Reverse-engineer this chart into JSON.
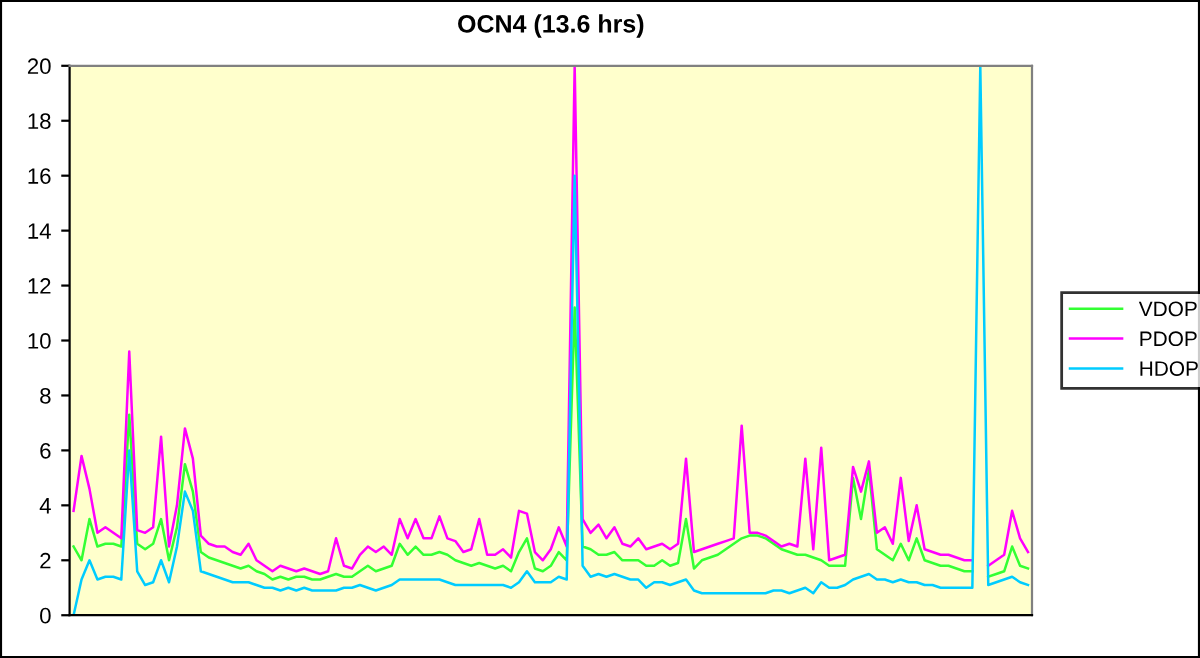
{
  "chart_data": {
    "type": "line",
    "title": "OCN4 (13.6 hrs)",
    "categories": [
      null,
      null,
      null,
      null,
      null,
      null,
      null,
      null,
      null,
      null,
      null,
      null,
      null,
      null,
      null,
      null,
      null,
      null,
      null,
      null,
      null,
      null,
      null,
      null,
      null,
      null,
      null,
      null,
      null,
      null,
      null,
      null,
      null,
      null,
      null,
      null,
      null,
      null,
      null,
      null,
      null,
      null,
      null,
      null,
      null,
      null,
      null,
      null,
      null,
      null,
      null,
      null,
      null,
      null,
      null,
      null,
      null,
      null,
      null,
      null,
      null,
      null,
      null,
      null,
      null,
      null,
      null,
      null,
      null,
      null,
      null,
      null,
      null,
      null,
      null,
      null,
      null,
      null,
      null,
      null,
      null,
      null,
      null,
      null,
      null,
      null,
      null,
      null,
      null,
      null,
      null,
      null,
      null,
      null,
      null,
      null,
      null,
      null,
      null,
      null,
      null,
      null,
      null,
      null,
      null,
      null,
      null,
      null,
      null,
      null,
      null,
      null,
      null,
      null,
      null,
      null,
      null,
      null,
      null,
      null,
      null
    ],
    "series": [
      {
        "name": "VDOP",
        "color": "#33ff33",
        "values": [
          2.5,
          2.0,
          3.5,
          2.5,
          2.6,
          2.6,
          2.5,
          7.3,
          2.6,
          2.4,
          2.6,
          3.5,
          2.0,
          3.2,
          5.5,
          4.5,
          2.3,
          2.1,
          2.0,
          1.9,
          1.8,
          1.7,
          1.8,
          1.6,
          1.5,
          1.3,
          1.4,
          1.3,
          1.4,
          1.4,
          1.3,
          1.3,
          1.4,
          1.5,
          1.4,
          1.4,
          1.6,
          1.8,
          1.6,
          1.7,
          1.8,
          2.6,
          2.2,
          2.5,
          2.2,
          2.2,
          2.3,
          2.2,
          2.0,
          1.9,
          1.8,
          1.9,
          1.8,
          1.7,
          1.8,
          1.6,
          2.3,
          2.8,
          1.7,
          1.6,
          1.8,
          2.3,
          2.0,
          11.2,
          2.5,
          2.4,
          2.2,
          2.2,
          2.3,
          2.0,
          2.0,
          2.0,
          1.8,
          1.8,
          2.0,
          1.8,
          1.9,
          3.5,
          1.7,
          2.0,
          2.1,
          2.2,
          2.4,
          2.6,
          2.8,
          2.9,
          2.9,
          2.8,
          2.6,
          2.4,
          2.3,
          2.2,
          2.2,
          2.1,
          2.0,
          1.8,
          1.8,
          1.8,
          5.0,
          3.5,
          5.3,
          2.4,
          2.2,
          2.0,
          2.6,
          2.0,
          2.8,
          2.0,
          1.9,
          1.8,
          1.8,
          1.7,
          1.6,
          1.6,
          null,
          1.4,
          1.5,
          1.6,
          2.5,
          1.8,
          1.7
        ]
      },
      {
        "name": "PDOP",
        "color": "#ff00ff",
        "values": [
          3.8,
          5.8,
          4.6,
          3.0,
          3.2,
          3.0,
          2.8,
          9.6,
          3.1,
          3.0,
          3.2,
          6.5,
          2.5,
          4.0,
          6.8,
          5.7,
          2.9,
          2.6,
          2.5,
          2.5,
          2.3,
          2.2,
          2.6,
          2.0,
          1.8,
          1.6,
          1.8,
          1.7,
          1.6,
          1.7,
          1.6,
          1.5,
          1.6,
          2.8,
          1.8,
          1.7,
          2.2,
          2.5,
          2.3,
          2.5,
          2.2,
          3.5,
          2.8,
          3.5,
          2.8,
          2.8,
          3.6,
          2.8,
          2.7,
          2.3,
          2.4,
          3.5,
          2.2,
          2.2,
          2.4,
          2.1,
          3.8,
          3.7,
          2.3,
          2.0,
          2.4,
          3.2,
          2.5,
          20,
          3.5,
          3.0,
          3.3,
          2.8,
          3.2,
          2.6,
          2.5,
          2.8,
          2.4,
          2.5,
          2.6,
          2.4,
          2.6,
          5.7,
          2.3,
          2.4,
          2.5,
          2.6,
          2.7,
          2.8,
          6.9,
          3.0,
          3.0,
          2.9,
          2.7,
          2.5,
          2.6,
          2.5,
          5.7,
          2.4,
          6.1,
          2.0,
          2.1,
          2.2,
          5.4,
          4.5,
          5.6,
          3.0,
          3.2,
          2.6,
          5.0,
          2.7,
          4.0,
          2.4,
          2.3,
          2.2,
          2.2,
          2.1,
          2.0,
          2.0,
          null,
          1.8,
          2.0,
          2.2,
          3.8,
          2.8,
          2.3
        ]
      },
      {
        "name": "HDOP",
        "color": "#00ccff",
        "values": [
          0,
          1.3,
          2.0,
          1.3,
          1.4,
          1.4,
          1.3,
          6.0,
          1.6,
          1.1,
          1.2,
          2.0,
          1.2,
          2.5,
          4.5,
          3.8,
          1.6,
          1.5,
          1.4,
          1.3,
          1.2,
          1.2,
          1.2,
          1.1,
          1.0,
          1.0,
          0.9,
          1.0,
          0.9,
          1.0,
          0.9,
          0.9,
          0.9,
          0.9,
          1.0,
          1.0,
          1.1,
          1.0,
          0.9,
          1.0,
          1.1,
          1.3,
          1.3,
          1.3,
          1.3,
          1.3,
          1.3,
          1.2,
          1.1,
          1.1,
          1.1,
          1.1,
          1.1,
          1.1,
          1.1,
          1.0,
          1.2,
          1.6,
          1.2,
          1.2,
          1.2,
          1.4,
          1.3,
          16,
          1.8,
          1.4,
          1.5,
          1.4,
          1.5,
          1.4,
          1.3,
          1.3,
          1.0,
          1.2,
          1.2,
          1.1,
          1.2,
          1.3,
          0.9,
          0.8,
          0.8,
          0.8,
          0.8,
          0.8,
          0.8,
          0.8,
          0.8,
          0.8,
          0.9,
          0.9,
          0.8,
          0.9,
          1.0,
          0.8,
          1.2,
          1.0,
          1.0,
          1.1,
          1.3,
          1.4,
          1.5,
          1.3,
          1.3,
          1.2,
          1.3,
          1.2,
          1.2,
          1.1,
          1.1,
          1.0,
          1.0,
          1.0,
          1.0,
          1.0,
          20,
          1.1,
          1.2,
          1.3,
          1.4,
          1.2,
          1.1
        ]
      }
    ],
    "ylim": [
      0,
      20
    ],
    "yticks": [
      0,
      2,
      4,
      6,
      8,
      10,
      12,
      14,
      16,
      18,
      20
    ],
    "tick_labels": "y",
    "grid": false,
    "legend": "right"
  }
}
